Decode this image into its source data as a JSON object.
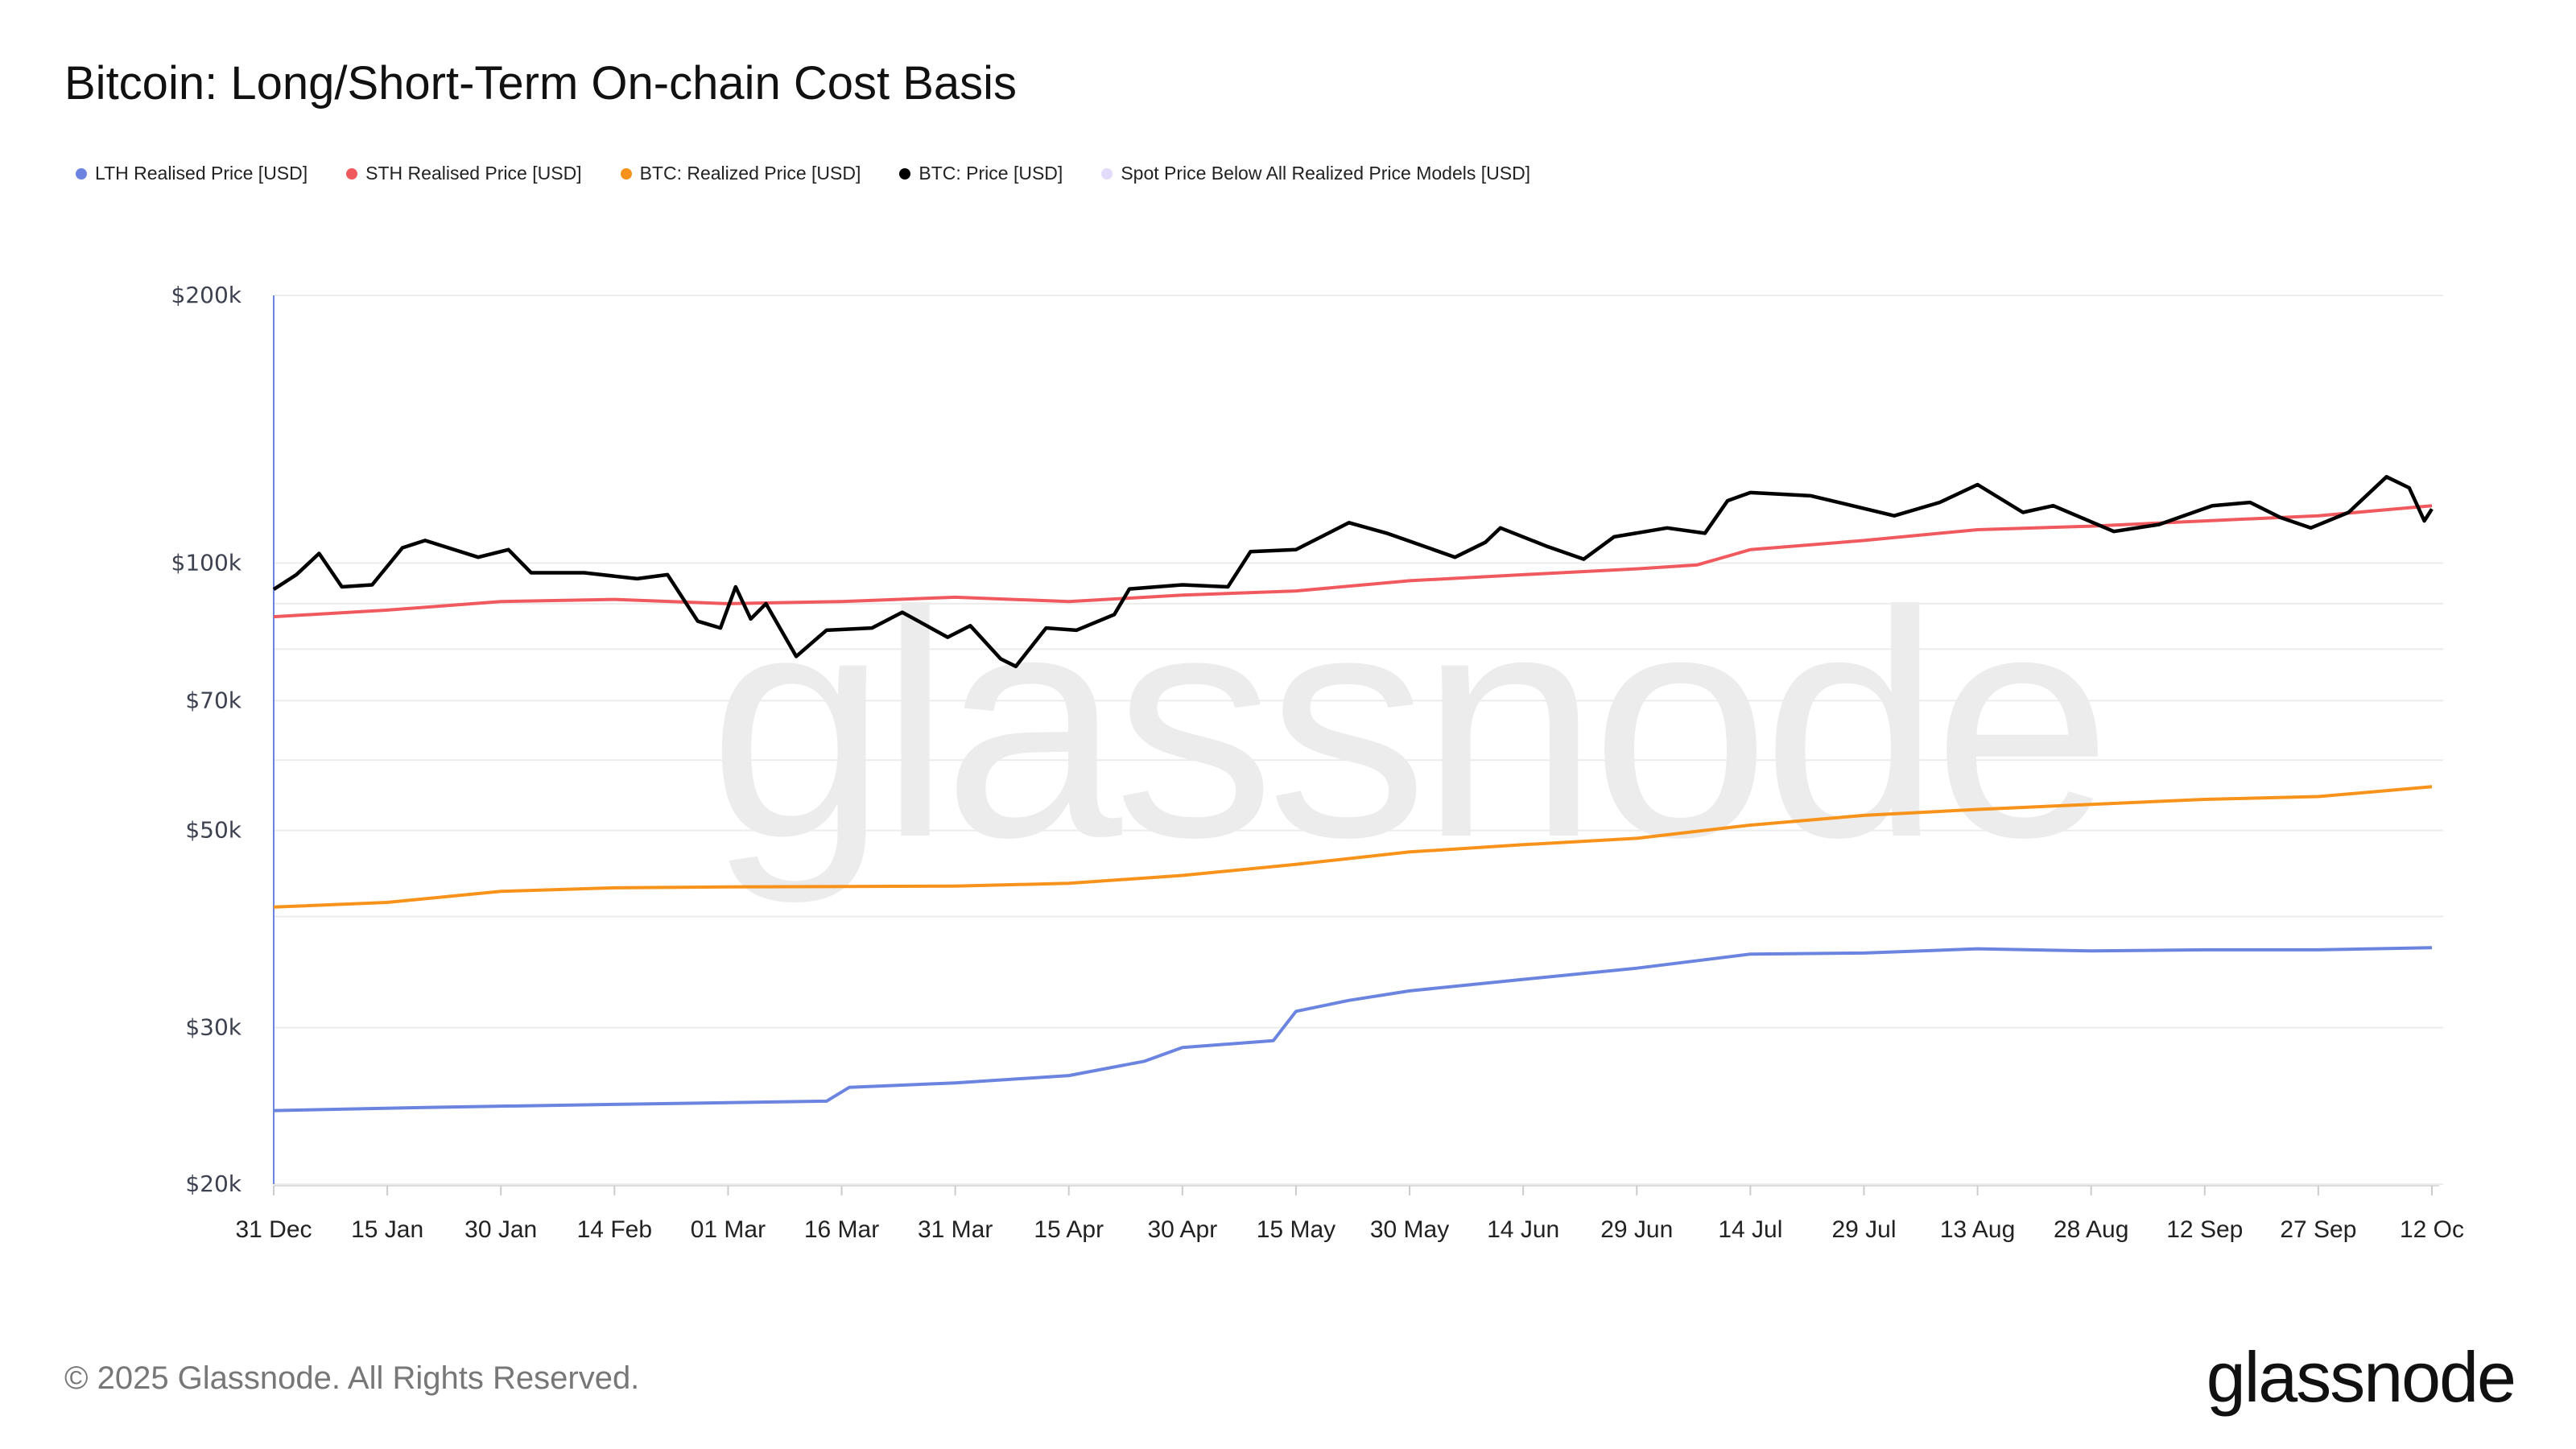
{
  "title": "Bitcoin: Long/Short-Term On-chain Cost Basis",
  "footer": {
    "copyright": "© 2025 Glassnode. All Rights Reserved.",
    "logo": "glassnode",
    "watermark": "glassnode"
  },
  "chart_data": {
    "type": "line",
    "title": "Bitcoin: Long/Short-Term On-chain Cost Basis",
    "yscale": "log",
    "ylim": [
      20000,
      200000
    ],
    "xlim": [
      "2024-12-31",
      "2025-10-12"
    ],
    "grid": true,
    "legend_placement": "top-left",
    "y_ticks": [
      {
        "value": 20000,
        "label": "$20k"
      },
      {
        "value": 30000,
        "label": "$30k"
      },
      {
        "value": 50000,
        "label": "$50k"
      },
      {
        "value": 70000,
        "label": "$70k"
      },
      {
        "value": 100000,
        "label": "$100k"
      },
      {
        "value": 200000,
        "label": "$200k"
      }
    ],
    "y_gridlines": [
      20000,
      30000,
      40000,
      50000,
      60000,
      70000,
      80000,
      90000,
      100000,
      200000
    ],
    "x_ticks": [
      {
        "date": "2024-12-31",
        "label": "31 Dec"
      },
      {
        "date": "2025-01-15",
        "label": "15 Jan"
      },
      {
        "date": "2025-01-30",
        "label": "30 Jan"
      },
      {
        "date": "2025-02-14",
        "label": "14 Feb"
      },
      {
        "date": "2025-03-01",
        "label": "01 Mar"
      },
      {
        "date": "2025-03-16",
        "label": "16 Mar"
      },
      {
        "date": "2025-03-31",
        "label": "31 Mar"
      },
      {
        "date": "2025-04-15",
        "label": "15 Apr"
      },
      {
        "date": "2025-04-30",
        "label": "30 Apr"
      },
      {
        "date": "2025-05-15",
        "label": "15 May"
      },
      {
        "date": "2025-05-30",
        "label": "30 May"
      },
      {
        "date": "2025-06-14",
        "label": "14 Jun"
      },
      {
        "date": "2025-06-29",
        "label": "29 Jun"
      },
      {
        "date": "2025-07-14",
        "label": "14 Jul"
      },
      {
        "date": "2025-07-29",
        "label": "29 Jul"
      },
      {
        "date": "2025-08-13",
        "label": "13 Aug"
      },
      {
        "date": "2025-08-28",
        "label": "28 Aug"
      },
      {
        "date": "2025-09-12",
        "label": "12 Sep"
      },
      {
        "date": "2025-09-27",
        "label": "27 Sep"
      },
      {
        "date": "2025-10-12",
        "label": "12 Oc"
      }
    ],
    "series": [
      {
        "name": "LTH Realised Price [USD]",
        "color": "#6b84e0",
        "points": [
          [
            "2024-12-31",
            24200
          ],
          [
            "2025-01-20",
            24400
          ],
          [
            "2025-02-15",
            24600
          ],
          [
            "2025-03-14",
            24800
          ],
          [
            "2025-03-17",
            25700
          ],
          [
            "2025-03-31",
            26000
          ],
          [
            "2025-04-15",
            26500
          ],
          [
            "2025-04-25",
            27500
          ],
          [
            "2025-04-30",
            28500
          ],
          [
            "2025-05-12",
            29000
          ],
          [
            "2025-05-15",
            31300
          ],
          [
            "2025-05-22",
            32200
          ],
          [
            "2025-05-30",
            33000
          ],
          [
            "2025-06-14",
            34000
          ],
          [
            "2025-06-29",
            35000
          ],
          [
            "2025-07-14",
            36300
          ],
          [
            "2025-07-29",
            36400
          ],
          [
            "2025-08-13",
            36800
          ],
          [
            "2025-08-28",
            36600
          ],
          [
            "2025-09-12",
            36700
          ],
          [
            "2025-09-27",
            36700
          ],
          [
            "2025-10-12",
            36900
          ]
        ]
      },
      {
        "name": "STH Realised Price [USD]",
        "color": "#f05a5e",
        "points": [
          [
            "2024-12-31",
            87000
          ],
          [
            "2025-01-15",
            88500
          ],
          [
            "2025-01-30",
            90500
          ],
          [
            "2025-02-14",
            91000
          ],
          [
            "2025-03-01",
            90000
          ],
          [
            "2025-03-16",
            90500
          ],
          [
            "2025-03-31",
            91500
          ],
          [
            "2025-04-15",
            90500
          ],
          [
            "2025-04-30",
            92000
          ],
          [
            "2025-05-15",
            93000
          ],
          [
            "2025-05-30",
            95500
          ],
          [
            "2025-06-14",
            97000
          ],
          [
            "2025-06-29",
            98500
          ],
          [
            "2025-07-07",
            99500
          ],
          [
            "2025-07-14",
            103500
          ],
          [
            "2025-07-29",
            106000
          ],
          [
            "2025-08-13",
            109000
          ],
          [
            "2025-08-28",
            110000
          ],
          [
            "2025-09-12",
            111500
          ],
          [
            "2025-09-27",
            113000
          ],
          [
            "2025-10-12",
            116000
          ]
        ]
      },
      {
        "name": "BTC: Realized Price [USD]",
        "color": "#f7931a",
        "points": [
          [
            "2024-12-31",
            41000
          ],
          [
            "2025-01-15",
            41500
          ],
          [
            "2025-01-30",
            42700
          ],
          [
            "2025-02-14",
            43100
          ],
          [
            "2025-03-01",
            43200
          ],
          [
            "2025-03-31",
            43300
          ],
          [
            "2025-04-15",
            43600
          ],
          [
            "2025-04-30",
            44500
          ],
          [
            "2025-05-15",
            45800
          ],
          [
            "2025-05-30",
            47300
          ],
          [
            "2025-06-14",
            48200
          ],
          [
            "2025-06-29",
            49000
          ],
          [
            "2025-07-14",
            50700
          ],
          [
            "2025-07-29",
            52000
          ],
          [
            "2025-08-13",
            52800
          ],
          [
            "2025-08-28",
            53500
          ],
          [
            "2025-09-12",
            54200
          ],
          [
            "2025-09-27",
            54600
          ],
          [
            "2025-10-12",
            56000
          ]
        ]
      },
      {
        "name": "BTC: Price [USD]",
        "color": "#000000",
        "points": [
          [
            "2024-12-31",
            93400
          ],
          [
            "2025-01-03",
            97000
          ],
          [
            "2025-01-06",
            102500
          ],
          [
            "2025-01-09",
            94000
          ],
          [
            "2025-01-13",
            94500
          ],
          [
            "2025-01-17",
            104000
          ],
          [
            "2025-01-20",
            106000
          ],
          [
            "2025-01-27",
            101500
          ],
          [
            "2025-01-31",
            103500
          ],
          [
            "2025-02-03",
            97500
          ],
          [
            "2025-02-10",
            97500
          ],
          [
            "2025-02-17",
            96000
          ],
          [
            "2025-02-21",
            97000
          ],
          [
            "2025-02-25",
            86000
          ],
          [
            "2025-02-28",
            84500
          ],
          [
            "2025-03-02",
            94000
          ],
          [
            "2025-03-04",
            86500
          ],
          [
            "2025-03-06",
            90000
          ],
          [
            "2025-03-10",
            78500
          ],
          [
            "2025-03-14",
            84000
          ],
          [
            "2025-03-20",
            84500
          ],
          [
            "2025-03-24",
            88000
          ],
          [
            "2025-03-30",
            82500
          ],
          [
            "2025-04-02",
            85000
          ],
          [
            "2025-04-06",
            78000
          ],
          [
            "2025-04-08",
            76500
          ],
          [
            "2025-04-12",
            84500
          ],
          [
            "2025-04-16",
            84000
          ],
          [
            "2025-04-21",
            87500
          ],
          [
            "2025-04-23",
            93500
          ],
          [
            "2025-04-30",
            94500
          ],
          [
            "2025-05-06",
            94000
          ],
          [
            "2025-05-09",
            103000
          ],
          [
            "2025-05-15",
            103500
          ],
          [
            "2025-05-22",
            111000
          ],
          [
            "2025-05-27",
            108000
          ],
          [
            "2025-06-05",
            101500
          ],
          [
            "2025-06-09",
            105500
          ],
          [
            "2025-06-11",
            109500
          ],
          [
            "2025-06-17",
            104500
          ],
          [
            "2025-06-22",
            101000
          ],
          [
            "2025-06-26",
            107000
          ],
          [
            "2025-07-03",
            109500
          ],
          [
            "2025-07-08",
            108000
          ],
          [
            "2025-07-11",
            117500
          ],
          [
            "2025-07-14",
            120000
          ],
          [
            "2025-07-22",
            119000
          ],
          [
            "2025-08-02",
            113000
          ],
          [
            "2025-08-08",
            117000
          ],
          [
            "2025-08-13",
            122500
          ],
          [
            "2025-08-19",
            114000
          ],
          [
            "2025-08-23",
            116000
          ],
          [
            "2025-08-31",
            108500
          ],
          [
            "2025-09-06",
            110500
          ],
          [
            "2025-09-13",
            116000
          ],
          [
            "2025-09-18",
            117000
          ],
          [
            "2025-09-22",
            112500
          ],
          [
            "2025-09-26",
            109500
          ],
          [
            "2025-10-01",
            114000
          ],
          [
            "2025-10-06",
            125000
          ],
          [
            "2025-10-09",
            121500
          ],
          [
            "2025-10-11",
            111500
          ],
          [
            "2025-10-12",
            115000
          ]
        ]
      },
      {
        "name": "Spot Price Below All Realized Price Models [USD]",
        "color": "#e3dbfa",
        "points": []
      }
    ]
  }
}
